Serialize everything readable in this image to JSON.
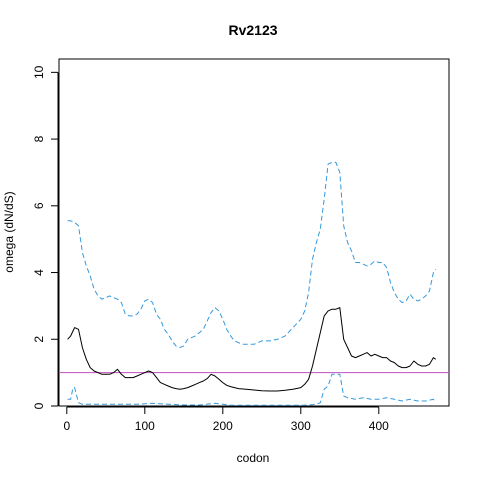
{
  "chart_data": {
    "type": "line",
    "title": "Rv2123",
    "xlabel": "codon",
    "ylabel": "omega (dN/dS)",
    "xlim": [
      -10,
      490
    ],
    "ylim": [
      0,
      10.4
    ],
    "xticks": [
      0,
      100,
      200,
      300,
      400
    ],
    "yticks": [
      0,
      2,
      4,
      6,
      8,
      10
    ],
    "grid": false,
    "reference_line": {
      "y": 1,
      "color": "#c050c0"
    },
    "colors": {
      "median": "#000000",
      "bounds": "#3399dd",
      "frame": "#000000"
    },
    "series": [
      {
        "role": "upper",
        "style": "dashed",
        "x": [
          1,
          5,
          10,
          15,
          20,
          25,
          30,
          35,
          40,
          45,
          50,
          55,
          60,
          65,
          70,
          75,
          80,
          85,
          90,
          95,
          100,
          105,
          110,
          115,
          120,
          125,
          130,
          135,
          140,
          145,
          150,
          155,
          160,
          165,
          170,
          175,
          180,
          185,
          190,
          195,
          200,
          205,
          210,
          215,
          220,
          225,
          230,
          240,
          250,
          260,
          270,
          280,
          290,
          300,
          305,
          310,
          315,
          320,
          325,
          330,
          335,
          340,
          345,
          350,
          355,
          360,
          365,
          370,
          375,
          380,
          385,
          390,
          395,
          400,
          405,
          410,
          415,
          420,
          425,
          430,
          435,
          440,
          445,
          450,
          455,
          460,
          465,
          470,
          473
        ],
        "y": [
          5.55,
          5.55,
          5.5,
          5.4,
          4.6,
          4.2,
          3.9,
          3.5,
          3.3,
          3.2,
          3.25,
          3.3,
          3.25,
          3.2,
          3.1,
          2.75,
          2.7,
          2.7,
          2.75,
          2.9,
          3.15,
          3.2,
          3.1,
          2.75,
          2.6,
          2.3,
          2.15,
          1.95,
          1.8,
          1.75,
          1.8,
          2.0,
          2.05,
          2.1,
          2.2,
          2.3,
          2.55,
          2.8,
          2.95,
          2.85,
          2.6,
          2.3,
          2.1,
          1.95,
          1.9,
          1.85,
          1.85,
          1.85,
          1.95,
          1.95,
          2.0,
          2.1,
          2.35,
          2.6,
          2.85,
          3.4,
          4.4,
          4.9,
          5.3,
          6.2,
          7.25,
          7.3,
          7.3,
          7.0,
          5.4,
          4.9,
          4.65,
          4.3,
          4.3,
          4.25,
          4.2,
          4.25,
          4.35,
          4.3,
          4.3,
          4.15,
          3.7,
          3.4,
          3.2,
          3.1,
          3.15,
          3.35,
          3.2,
          3.15,
          3.2,
          3.3,
          3.45,
          4.0,
          4.1
        ]
      },
      {
        "role": "median",
        "style": "solid",
        "x": [
          1,
          5,
          10,
          15,
          20,
          25,
          30,
          35,
          40,
          45,
          50,
          55,
          60,
          65,
          70,
          75,
          80,
          85,
          90,
          95,
          100,
          105,
          110,
          115,
          120,
          125,
          130,
          135,
          140,
          145,
          150,
          155,
          160,
          165,
          170,
          175,
          180,
          185,
          190,
          195,
          200,
          205,
          210,
          215,
          220,
          230,
          240,
          250,
          260,
          270,
          280,
          290,
          300,
          305,
          310,
          315,
          320,
          325,
          330,
          335,
          340,
          345,
          350,
          355,
          360,
          365,
          370,
          375,
          380,
          385,
          390,
          395,
          400,
          405,
          410,
          415,
          420,
          425,
          430,
          435,
          440,
          445,
          450,
          455,
          460,
          465,
          470,
          473
        ],
        "y": [
          2.0,
          2.1,
          2.35,
          2.3,
          1.75,
          1.4,
          1.15,
          1.05,
          1.0,
          0.95,
          0.95,
          0.95,
          1.0,
          1.1,
          0.95,
          0.85,
          0.85,
          0.85,
          0.9,
          0.95,
          1.0,
          1.05,
          1.0,
          0.85,
          0.7,
          0.65,
          0.6,
          0.55,
          0.52,
          0.5,
          0.52,
          0.55,
          0.6,
          0.65,
          0.7,
          0.75,
          0.82,
          0.95,
          0.9,
          0.8,
          0.7,
          0.62,
          0.58,
          0.55,
          0.52,
          0.5,
          0.48,
          0.46,
          0.45,
          0.45,
          0.47,
          0.5,
          0.55,
          0.65,
          0.8,
          1.2,
          1.7,
          2.2,
          2.7,
          2.85,
          2.9,
          2.9,
          2.95,
          2.0,
          1.75,
          1.5,
          1.45,
          1.5,
          1.55,
          1.6,
          1.5,
          1.55,
          1.5,
          1.45,
          1.45,
          1.35,
          1.3,
          1.2,
          1.15,
          1.15,
          1.2,
          1.35,
          1.25,
          1.2,
          1.2,
          1.25,
          1.45,
          1.4
        ]
      },
      {
        "role": "lower",
        "style": "dashed",
        "x": [
          1,
          5,
          8,
          10,
          15,
          20,
          30,
          50,
          70,
          90,
          110,
          130,
          150,
          170,
          190,
          210,
          230,
          250,
          270,
          290,
          300,
          310,
          320,
          325,
          330,
          335,
          340,
          345,
          350,
          355,
          360,
          370,
          380,
          390,
          400,
          410,
          420,
          430,
          440,
          450,
          460,
          470,
          473
        ],
        "y": [
          0.2,
          0.2,
          0.55,
          0.55,
          0.1,
          0.05,
          0.05,
          0.05,
          0.05,
          0.05,
          0.08,
          0.05,
          0.03,
          0.03,
          0.08,
          0.02,
          0.02,
          0.02,
          0.02,
          0.02,
          0.02,
          0.03,
          0.05,
          0.1,
          0.5,
          0.6,
          0.95,
          0.95,
          0.95,
          0.3,
          0.25,
          0.2,
          0.25,
          0.2,
          0.2,
          0.25,
          0.2,
          0.15,
          0.2,
          0.15,
          0.15,
          0.2,
          0.1
        ]
      }
    ]
  }
}
